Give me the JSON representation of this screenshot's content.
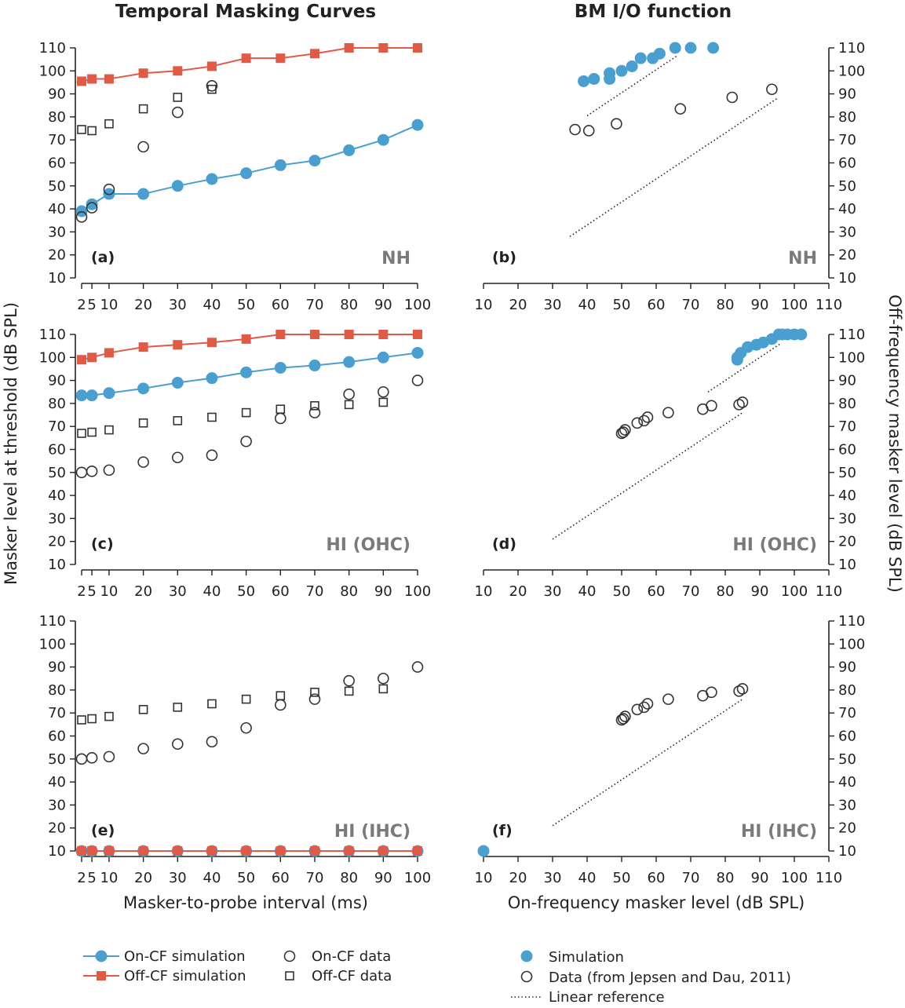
{
  "figure": {
    "left_column_title": "Temporal Masking Curves",
    "right_column_title": "BM I/O function",
    "left_ylabel": "Masker level at threshold (dB SPL)",
    "right_ylabel": "Off-frequency masker level (dB SPL)",
    "left_xlabel": "Masker-to-probe interval (ms)",
    "right_xlabel": "On-frequency masker level (dB SPL)",
    "colors": {
      "on_cf": "#4a9fd1",
      "off_cf": "#e05a45",
      "data": "#333333",
      "condition_label": "#7a7a7a"
    }
  },
  "legend": {
    "left": [
      {
        "label": "On-CF simulation",
        "icon": "blue-line-circle"
      },
      {
        "label": "Off-CF simulation",
        "icon": "red-line-square"
      },
      {
        "label": "On-CF data",
        "icon": "open-circle"
      },
      {
        "label": "Off-CF data",
        "icon": "open-square"
      }
    ],
    "right": [
      {
        "label": "Simulation",
        "icon": "blue-circle"
      },
      {
        "label": "Data (from Jepsen and Dau, 2011)",
        "icon": "open-circle"
      },
      {
        "label": "Linear reference",
        "icon": "dotted-line"
      }
    ]
  },
  "chart_data": [
    {
      "type": "line",
      "panel": "(a)",
      "condition": "NH",
      "xlabel": "Masker-to-probe interval (ms)",
      "ylabel": "Masker level at threshold (dB SPL)",
      "xticks": [
        2,
        5,
        10,
        20,
        30,
        40,
        50,
        60,
        70,
        80,
        90,
        100
      ],
      "xtick_labels": [
        "2",
        "5",
        "10",
        "20",
        "30",
        "40",
        "50",
        "60",
        "70",
        "80",
        "90",
        "100"
      ],
      "ylim": [
        10,
        110
      ],
      "yticks": [
        10,
        20,
        30,
        40,
        50,
        60,
        70,
        80,
        90,
        100,
        110
      ],
      "series": [
        {
          "name": "On-CF simulation",
          "style": "line-circle",
          "x": [
            2,
            5,
            10,
            20,
            30,
            40,
            50,
            60,
            70,
            80,
            90,
            100
          ],
          "y": [
            39,
            42,
            46.5,
            46.5,
            50,
            53,
            55.5,
            59,
            61,
            65.5,
            70,
            76.5
          ]
        },
        {
          "name": "Off-CF simulation",
          "style": "line-square",
          "x": [
            2,
            5,
            10,
            20,
            30,
            40,
            50,
            60,
            70,
            80,
            90,
            100
          ],
          "y": [
            95.5,
            96.5,
            96.5,
            99,
            100,
            102,
            105.5,
            105.5,
            107.5,
            110,
            110,
            110
          ]
        },
        {
          "name": "On-CF data",
          "style": "open-circle",
          "x": [
            2,
            5,
            10,
            20,
            30,
            40
          ],
          "y": [
            36.5,
            40.5,
            48.5,
            67,
            82,
            93.5
          ]
        },
        {
          "name": "Off-CF data",
          "style": "open-square",
          "x": [
            2,
            5,
            10,
            20,
            30,
            40
          ],
          "y": [
            74.5,
            74,
            77,
            83.5,
            88.5,
            92
          ]
        }
      ]
    },
    {
      "type": "scatter",
      "panel": "(b)",
      "condition": "NH",
      "xlabel": "On-frequency masker level (dB SPL)",
      "ylabel": "Off-frequency masker level (dB SPL)",
      "xlim": [
        10,
        110
      ],
      "ylim": [
        10,
        110
      ],
      "xticks": [
        10,
        20,
        30,
        40,
        50,
        60,
        70,
        80,
        90,
        100,
        110
      ],
      "yticks": [
        10,
        20,
        30,
        40,
        50,
        60,
        70,
        80,
        90,
        100,
        110
      ],
      "series": [
        {
          "name": "Simulation",
          "style": "filled-circle",
          "x": [
            39,
            42,
            46.5,
            46.5,
            50,
            53,
            55.5,
            59,
            61,
            65.5,
            70,
            76.5
          ],
          "y": [
            95.5,
            96.5,
            96.5,
            99,
            100,
            102,
            105.5,
            105.5,
            107.5,
            110,
            110,
            110
          ]
        },
        {
          "name": "Data (from Jepsen and Dau, 2011)",
          "style": "open-circle",
          "x": [
            36.5,
            40.5,
            48.5,
            67,
            82,
            93.5
          ],
          "y": [
            74.5,
            74,
            77,
            83.5,
            88.5,
            92
          ]
        },
        {
          "name": "Linear reference",
          "style": "dotted",
          "x": [
            40,
            66
          ],
          "y": [
            80.5,
            106.5
          ]
        },
        {
          "name": "Linear reference",
          "style": "dotted",
          "x": [
            35,
            95
          ],
          "y": [
            28,
            88
          ]
        }
      ]
    },
    {
      "type": "line",
      "panel": "(c)",
      "condition": "HI (OHC)",
      "xlabel": "Masker-to-probe interval (ms)",
      "ylabel": "Masker level at threshold (dB SPL)",
      "xticks": [
        2,
        5,
        10,
        20,
        30,
        40,
        50,
        60,
        70,
        80,
        90,
        100
      ],
      "xtick_labels": [
        "2",
        "5",
        "10",
        "20",
        "30",
        "40",
        "50",
        "60",
        "70",
        "80",
        "90",
        "100"
      ],
      "ylim": [
        10,
        110
      ],
      "yticks": [
        10,
        20,
        30,
        40,
        50,
        60,
        70,
        80,
        90,
        100,
        110
      ],
      "series": [
        {
          "name": "On-CF simulation",
          "style": "line-circle",
          "x": [
            2,
            5,
            10,
            20,
            30,
            40,
            50,
            60,
            70,
            80,
            90,
            100
          ],
          "y": [
            83.5,
            83.5,
            84.5,
            86.5,
            89,
            91,
            93.5,
            95.5,
            96.5,
            98,
            100,
            102
          ]
        },
        {
          "name": "Off-CF simulation",
          "style": "line-square",
          "x": [
            2,
            5,
            10,
            20,
            30,
            40,
            50,
            60,
            70,
            80,
            90,
            100
          ],
          "y": [
            99,
            100,
            102,
            104.5,
            105.5,
            106.5,
            108,
            110,
            110,
            110,
            110,
            110
          ]
        },
        {
          "name": "On-CF data",
          "style": "open-circle",
          "x": [
            2,
            5,
            10,
            20,
            30,
            40,
            50,
            60,
            70,
            80,
            90,
            100
          ],
          "y": [
            50,
            50.5,
            51,
            54.5,
            56.5,
            57.5,
            63.5,
            73.5,
            76,
            84,
            85,
            90
          ]
        },
        {
          "name": "Off-CF data",
          "style": "open-square",
          "x": [
            2,
            5,
            10,
            20,
            30,
            40,
            50,
            60,
            70,
            80,
            90
          ],
          "y": [
            67,
            67.5,
            68.5,
            71.5,
            72.5,
            74,
            76,
            77.5,
            79,
            79.5,
            80.5
          ]
        }
      ]
    },
    {
      "type": "scatter",
      "panel": "(d)",
      "condition": "HI (OHC)",
      "xlabel": "On-frequency masker level (dB SPL)",
      "ylabel": "Off-frequency masker level (dB SPL)",
      "xlim": [
        10,
        110
      ],
      "ylim": [
        10,
        110
      ],
      "xticks": [
        10,
        20,
        30,
        40,
        50,
        60,
        70,
        80,
        90,
        100,
        110
      ],
      "yticks": [
        10,
        20,
        30,
        40,
        50,
        60,
        70,
        80,
        90,
        100,
        110
      ],
      "series": [
        {
          "name": "Simulation",
          "style": "filled-circle",
          "x": [
            83.5,
            83.5,
            84.5,
            86.5,
            89,
            91,
            93.5,
            95.5,
            96.5,
            98,
            100,
            102
          ],
          "y": [
            99,
            100,
            102,
            104.5,
            105.5,
            106.5,
            108,
            110,
            110,
            110,
            110,
            110
          ]
        },
        {
          "name": "Data (from Jepsen and Dau, 2011)",
          "style": "open-circle",
          "x": [
            50,
            50.5,
            51,
            54.5,
            56.5,
            57.5,
            63.5,
            73.5,
            76,
            84,
            85
          ],
          "y": [
            67,
            67.5,
            68.5,
            71.5,
            72.5,
            74,
            76,
            77.5,
            79,
            79.5,
            80.5
          ]
        },
        {
          "name": "Linear reference",
          "style": "dotted",
          "x": [
            75,
            96
          ],
          "y": [
            85,
            106
          ]
        },
        {
          "name": "Linear reference",
          "style": "dotted",
          "x": [
            30,
            85
          ],
          "y": [
            21,
            76
          ]
        }
      ]
    },
    {
      "type": "line",
      "panel": "(e)",
      "condition": "HI (IHC)",
      "xlabel": "Masker-to-probe interval (ms)",
      "ylabel": "Masker level at threshold (dB SPL)",
      "xticks": [
        2,
        5,
        10,
        20,
        30,
        40,
        50,
        60,
        70,
        80,
        90,
        100
      ],
      "xtick_labels": [
        "2",
        "5",
        "10",
        "20",
        "30",
        "40",
        "50",
        "60",
        "70",
        "80",
        "90",
        "100"
      ],
      "ylim": [
        10,
        110
      ],
      "yticks": [
        10,
        20,
        30,
        40,
        50,
        60,
        70,
        80,
        90,
        100,
        110
      ],
      "series": [
        {
          "name": "On-CF simulation",
          "style": "line-circle",
          "x": [
            2,
            5,
            10,
            20,
            30,
            40,
            50,
            60,
            70,
            80,
            90,
            100
          ],
          "y": [
            10,
            10,
            10,
            10,
            10,
            10,
            10,
            10,
            10,
            10,
            10,
            10
          ]
        },
        {
          "name": "Off-CF simulation",
          "style": "line-square",
          "x": [
            2,
            5,
            10,
            20,
            30,
            40,
            50,
            60,
            70,
            80,
            90,
            100
          ],
          "y": [
            10,
            10,
            10,
            10,
            10,
            10,
            10,
            10,
            10,
            10,
            10,
            10
          ]
        },
        {
          "name": "On-CF data",
          "style": "open-circle",
          "x": [
            2,
            5,
            10,
            20,
            30,
            40,
            50,
            60,
            70,
            80,
            90,
            100
          ],
          "y": [
            50,
            50.5,
            51,
            54.5,
            56.5,
            57.5,
            63.5,
            73.5,
            76,
            84,
            85,
            90
          ]
        },
        {
          "name": "Off-CF data",
          "style": "open-square",
          "x": [
            2,
            5,
            10,
            20,
            30,
            40,
            50,
            60,
            70,
            80,
            90
          ],
          "y": [
            67,
            67.5,
            68.5,
            71.5,
            72.5,
            74,
            76,
            77.5,
            79,
            79.5,
            80.5
          ]
        }
      ]
    },
    {
      "type": "scatter",
      "panel": "(f)",
      "condition": "HI (IHC)",
      "xlabel": "On-frequency masker level (dB SPL)",
      "ylabel": "Off-frequency masker level (dB SPL)",
      "xlim": [
        10,
        110
      ],
      "ylim": [
        10,
        110
      ],
      "xticks": [
        10,
        20,
        30,
        40,
        50,
        60,
        70,
        80,
        90,
        100,
        110
      ],
      "yticks": [
        10,
        20,
        30,
        40,
        50,
        60,
        70,
        80,
        90,
        100,
        110
      ],
      "series": [
        {
          "name": "Simulation",
          "style": "filled-circle",
          "x": [
            10
          ],
          "y": [
            10
          ]
        },
        {
          "name": "Data (from Jepsen and Dau, 2011)",
          "style": "open-circle",
          "x": [
            50,
            50.5,
            51,
            54.5,
            56.5,
            57.5,
            63.5,
            73.5,
            76,
            84,
            85
          ],
          "y": [
            67,
            67.5,
            68.5,
            71.5,
            72.5,
            74,
            76,
            77.5,
            79,
            79.5,
            80.5
          ]
        },
        {
          "name": "Linear reference",
          "style": "dotted",
          "x": [
            30,
            85
          ],
          "y": [
            21,
            76
          ]
        }
      ]
    }
  ]
}
